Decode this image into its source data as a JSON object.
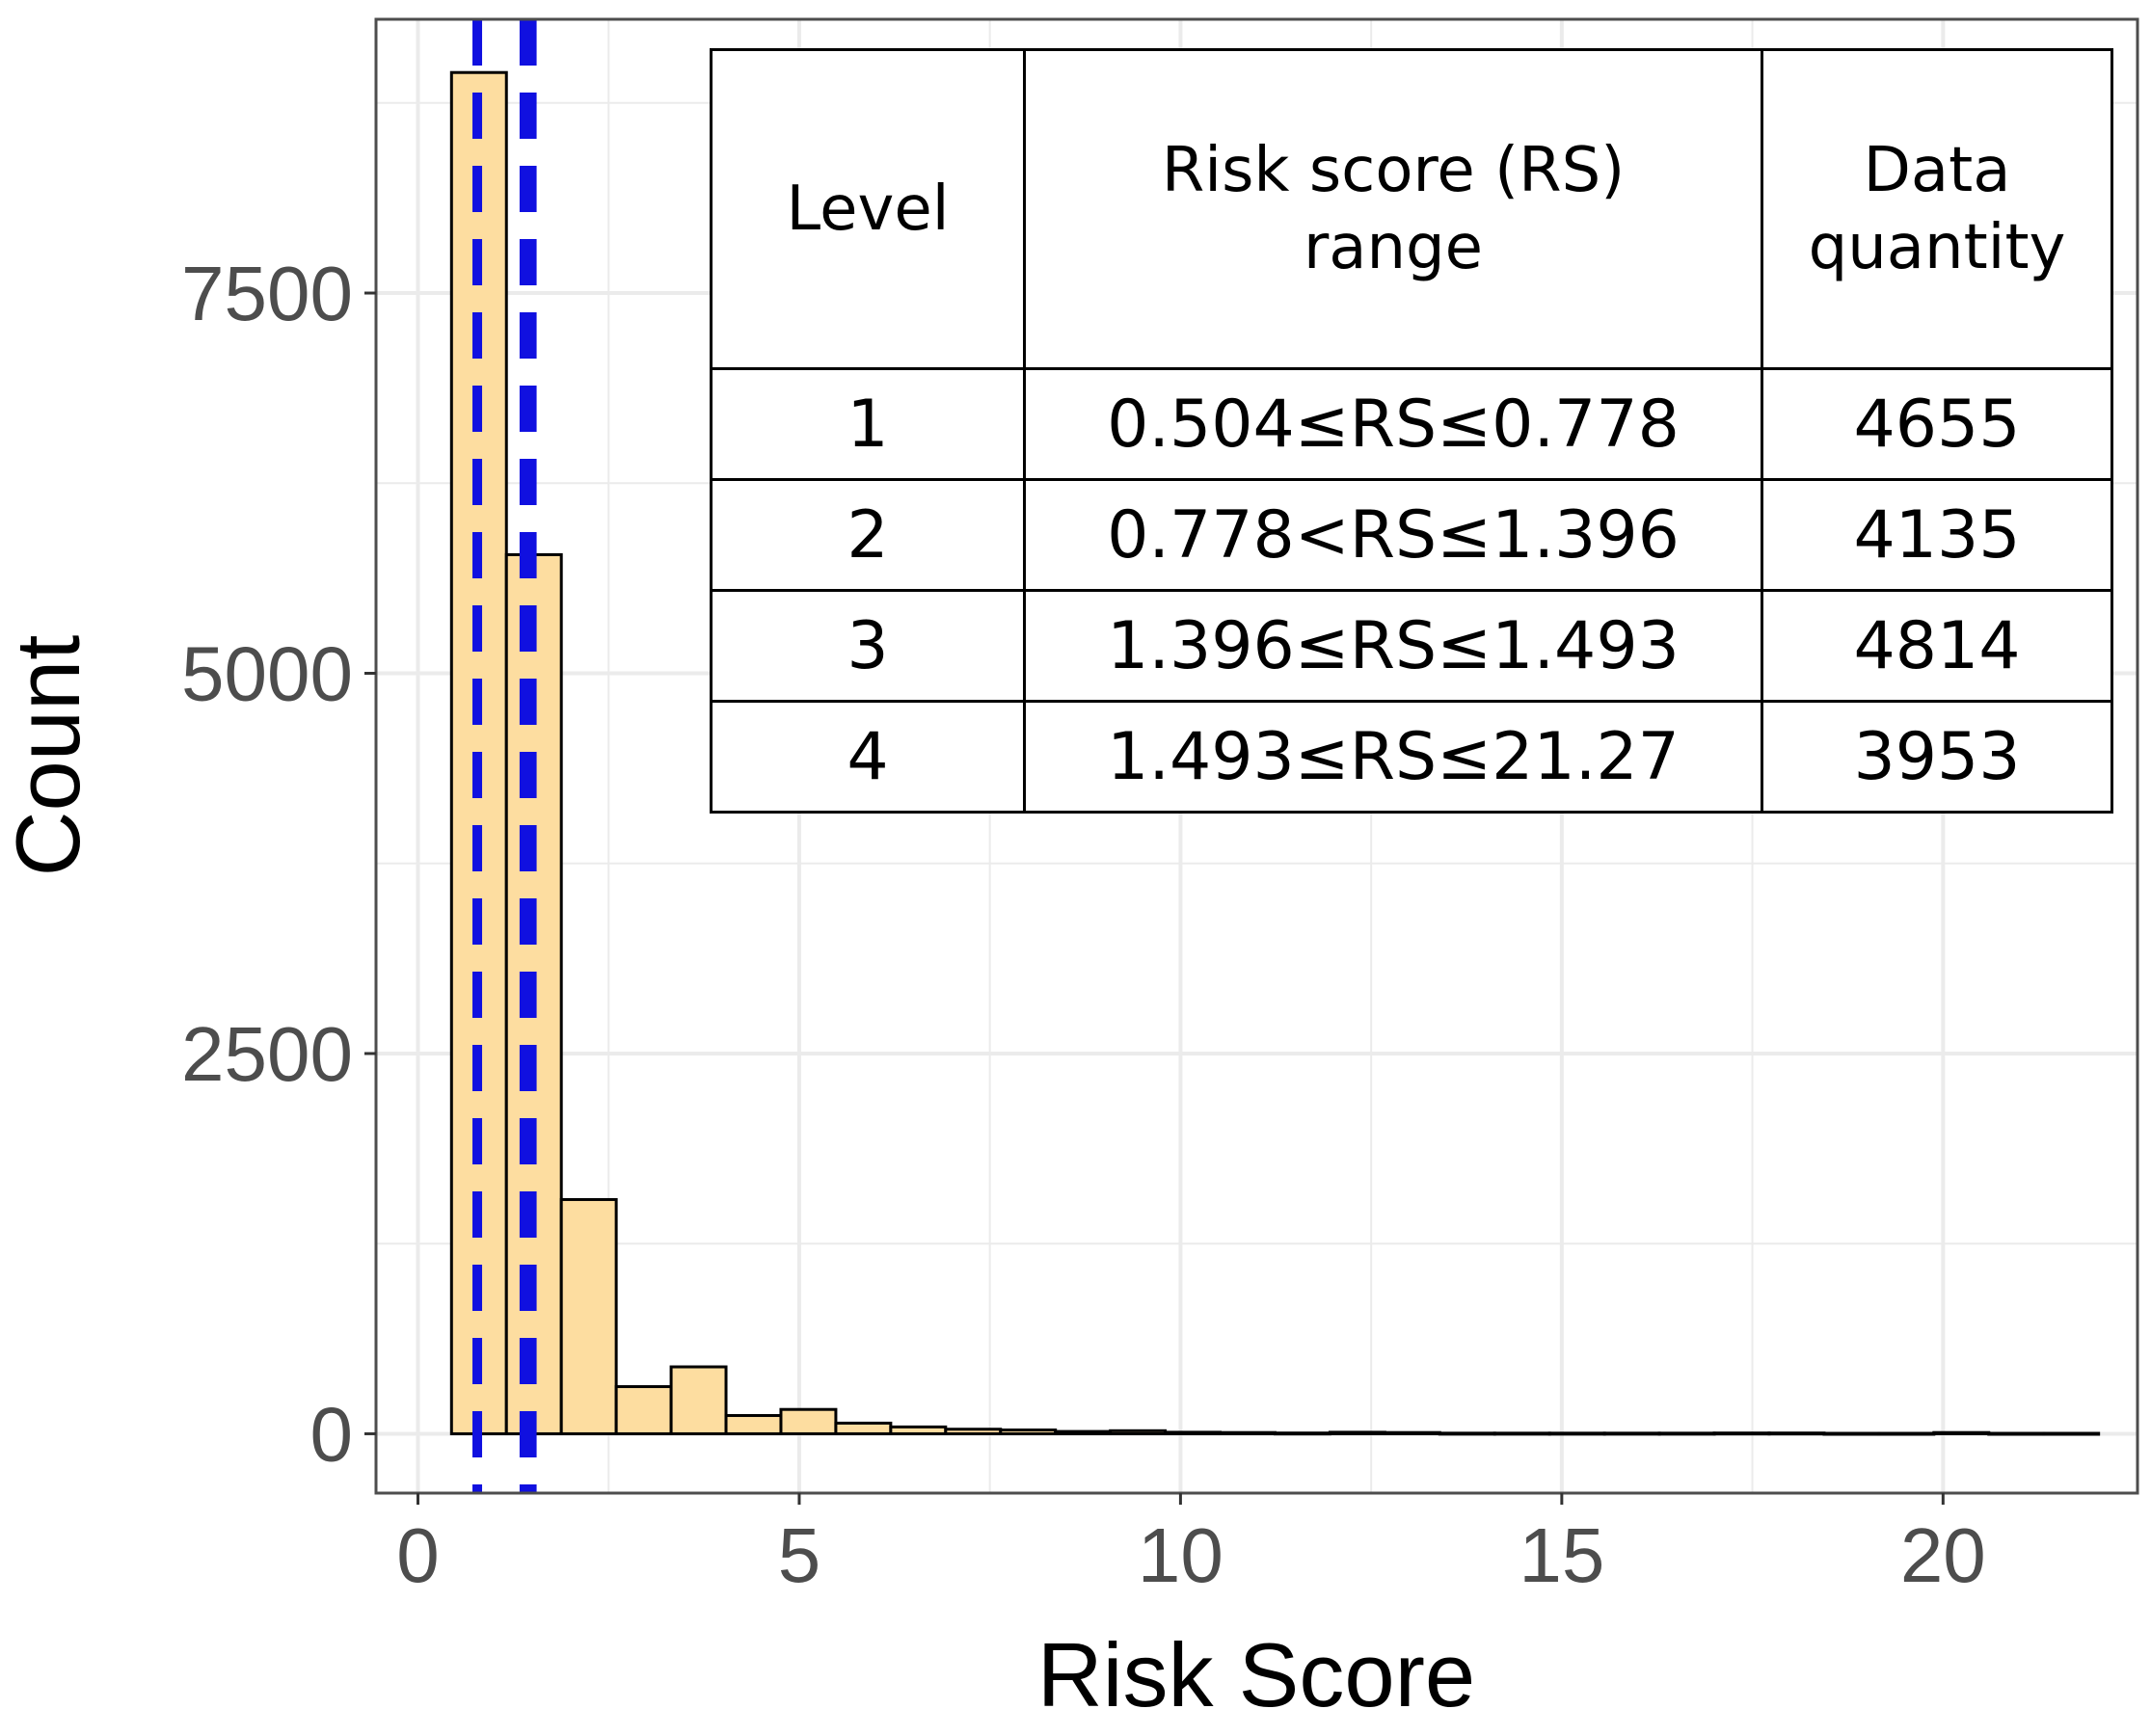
{
  "chart_data": {
    "type": "bar",
    "xlabel": "Risk Score",
    "ylabel": "Count",
    "xlim": [
      -0.55,
      22.55
    ],
    "ylim": [
      -390,
      9300
    ],
    "x_ticks": [
      0,
      5,
      10,
      15,
      20
    ],
    "y_ticks": [
      0,
      2500,
      5000,
      7500
    ],
    "bin_width": 0.72,
    "bins": [
      {
        "x0": 0.44,
        "x1": 1.16,
        "count": 8950
      },
      {
        "x0": 1.16,
        "x1": 1.88,
        "count": 5780
      },
      {
        "x0": 1.88,
        "x1": 2.6,
        "count": 1540
      },
      {
        "x0": 2.6,
        "x1": 3.32,
        "count": 310
      },
      {
        "x0": 3.32,
        "x1": 4.04,
        "count": 440
      },
      {
        "x0": 4.04,
        "x1": 4.76,
        "count": 120
      },
      {
        "x0": 4.76,
        "x1": 5.48,
        "count": 160
      },
      {
        "x0": 5.48,
        "x1": 6.2,
        "count": 70
      },
      {
        "x0": 6.2,
        "x1": 6.92,
        "count": 45
      },
      {
        "x0": 6.92,
        "x1": 7.64,
        "count": 30
      },
      {
        "x0": 7.64,
        "x1": 8.36,
        "count": 25
      },
      {
        "x0": 8.36,
        "x1": 9.08,
        "count": 15
      },
      {
        "x0": 9.08,
        "x1": 9.8,
        "count": 20
      },
      {
        "x0": 9.8,
        "x1": 10.52,
        "count": 10
      },
      {
        "x0": 10.52,
        "x1": 11.24,
        "count": 8
      },
      {
        "x0": 11.24,
        "x1": 11.96,
        "count": 5
      },
      {
        "x0": 11.96,
        "x1": 12.68,
        "count": 10
      },
      {
        "x0": 12.68,
        "x1": 13.4,
        "count": 8
      },
      {
        "x0": 13.4,
        "x1": 14.12,
        "count": 4
      },
      {
        "x0": 14.12,
        "x1": 14.84,
        "count": 4
      },
      {
        "x0": 14.84,
        "x1": 15.56,
        "count": 4
      },
      {
        "x0": 15.56,
        "x1": 16.28,
        "count": 4
      },
      {
        "x0": 16.28,
        "x1": 17.0,
        "count": 4
      },
      {
        "x0": 17.0,
        "x1": 17.72,
        "count": 5
      },
      {
        "x0": 17.72,
        "x1": 18.44,
        "count": 5
      },
      {
        "x0": 18.44,
        "x1": 19.16,
        "count": 3
      },
      {
        "x0": 19.16,
        "x1": 19.88,
        "count": 3
      },
      {
        "x0": 19.88,
        "x1": 20.6,
        "count": 8
      },
      {
        "x0": 20.6,
        "x1": 21.32,
        "count": 3
      },
      {
        "x0": 21.32,
        "x1": 22.04,
        "count": 3
      }
    ],
    "threshold_lines": [
      0.778,
      1.396,
      1.493
    ],
    "colors": {
      "bar_fill": "#FDDDA0",
      "bar_stroke": "#000000",
      "threshold": "#1010E0",
      "grid": "#EBEBEB",
      "axis_text": "#4D4D4D"
    },
    "table": {
      "headers": [
        "Level",
        "Risk score (RS) range",
        "Data quantity"
      ],
      "header_lines": [
        [
          "Level"
        ],
        [
          "Risk score (RS)",
          "range"
        ],
        [
          "Data",
          "quantity"
        ]
      ],
      "rows": [
        [
          "1",
          "0.504≤RS≤0.778",
          "4655"
        ],
        [
          "2",
          "0.778<RS≤1.396",
          "4135"
        ],
        [
          "3",
          "1.396≤RS≤1.493",
          "4814"
        ],
        [
          "4",
          "1.493≤RS≤21.27",
          "3953"
        ]
      ]
    }
  }
}
